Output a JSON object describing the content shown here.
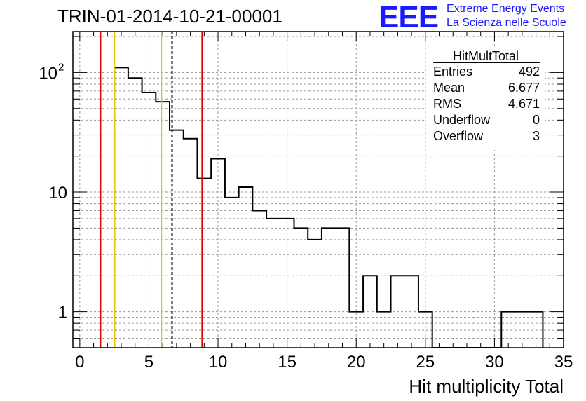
{
  "title": "TRIN-01-2014-10-21-00001",
  "logo": {
    "text": "EEE",
    "line1": "Extreme Energy Events",
    "line2": "La Scienza nelle Scuole",
    "color": "#1a1aff"
  },
  "stats": {
    "title": "HitMultTotal",
    "rows": [
      {
        "label": "Entries",
        "value": "492"
      },
      {
        "label": "Mean",
        "value": "6.677"
      },
      {
        "label": "RMS",
        "value": "4.671"
      },
      {
        "label": "Underflow",
        "value": "0"
      },
      {
        "label": "Overflow",
        "value": "3"
      }
    ]
  },
  "chart_data": {
    "type": "bar",
    "style": "step-histogram",
    "xlabel": "Hit multiplicity Total",
    "ylabel": "",
    "xlim": [
      -0.5,
      35
    ],
    "ylim": [
      0.5,
      220
    ],
    "yscale": "log",
    "grid": true,
    "bin_edges": [
      2.5,
      3.5,
      4.5,
      5.5,
      6.5,
      7.5,
      8.5,
      9.5,
      10.5,
      11.5,
      12.5,
      13.5,
      14.5,
      15.5,
      16.5,
      17.5,
      18.5,
      19.5,
      20.5,
      21.5,
      22.5,
      23.5,
      24.5,
      25.5,
      26.5,
      27.5,
      28.5,
      29.5,
      30.5,
      31.5,
      32.5,
      33.5
    ],
    "values": [
      110,
      90,
      68,
      57,
      33,
      28,
      13,
      19,
      9,
      11,
      7,
      6,
      6,
      5,
      4,
      5,
      5,
      1,
      2,
      1,
      2,
      2,
      1,
      0,
      0,
      0,
      0,
      0,
      1,
      1,
      1
    ],
    "x_ticks": [
      "0",
      "5",
      "10",
      "15",
      "20",
      "25",
      "30",
      "35"
    ],
    "x_tick_values": [
      0,
      5,
      10,
      15,
      20,
      25,
      30,
      35
    ],
    "y_ticks": [
      {
        "value": 1,
        "label": "1"
      },
      {
        "value": 10,
        "label": "10"
      },
      {
        "value": 100,
        "label": "10",
        "sup": "2"
      }
    ],
    "vertical_lines": [
      {
        "x": 1.5,
        "color": "#e00000",
        "style": "solid"
      },
      {
        "x": 2.5,
        "color": "#f0c000",
        "style": "solid"
      },
      {
        "x": 5.9,
        "color": "#f0c000",
        "style": "solid"
      },
      {
        "x": 6.677,
        "color": "#000000",
        "style": "dashed"
      },
      {
        "x": 8.85,
        "color": "#e00000",
        "style": "solid"
      }
    ],
    "line_color": "#000000"
  }
}
